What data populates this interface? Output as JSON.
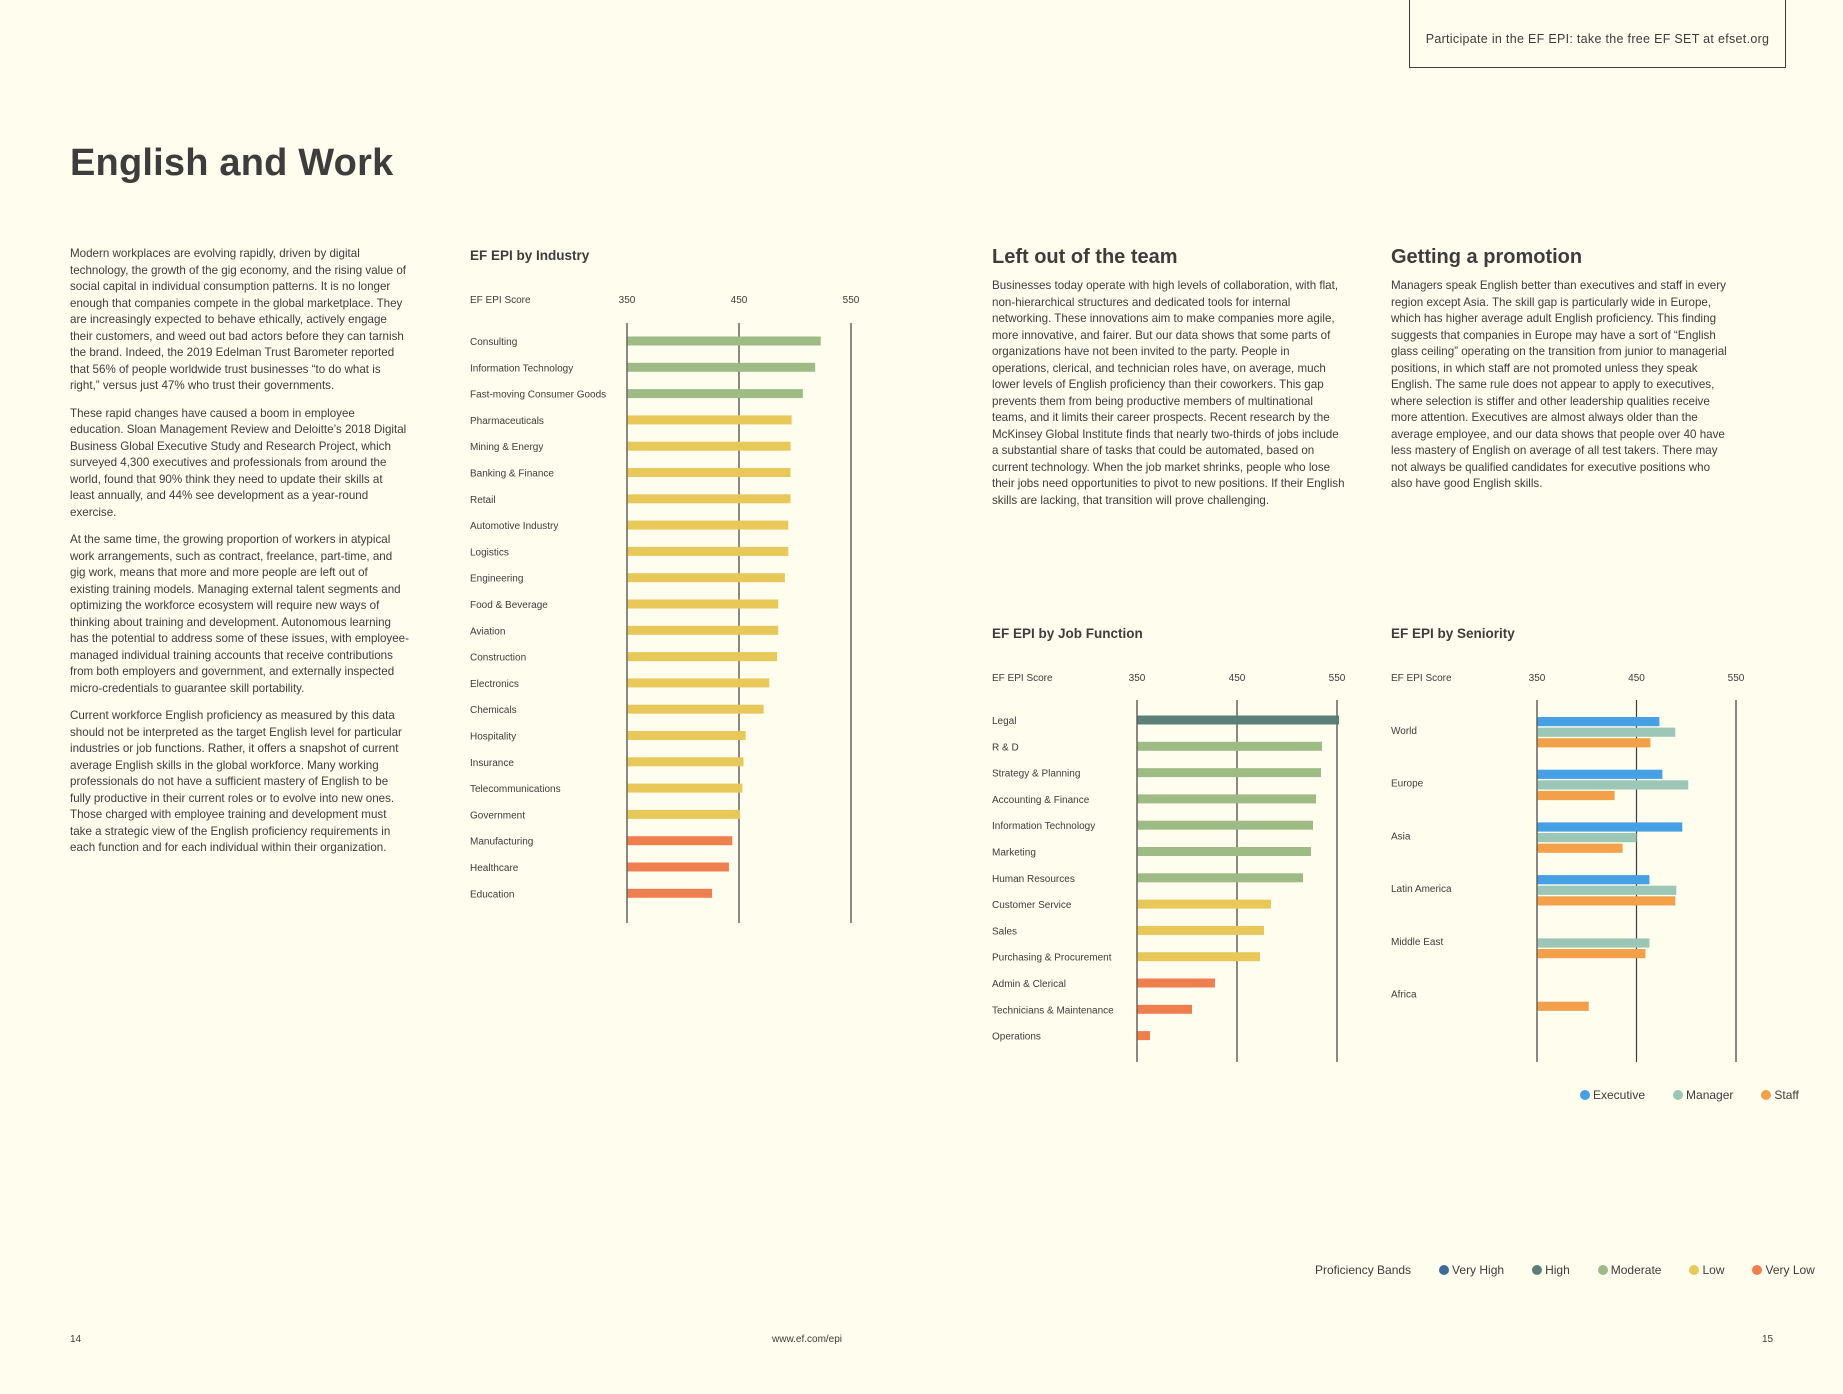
{
  "banner": "Participate in the EF EPI: take the free EF SET at efset.org",
  "title": "English and Work",
  "intro_paragraphs": [
    "Modern workplaces are evolving rapidly, driven by digital technology, the growth of the gig economy, and the rising value of social capital in individual consumption patterns. It is no longer enough that companies compete in the global marketplace. They are increasingly expected to behave ethically, actively engage their customers, and weed out bad actors before they can tarnish the brand. Indeed, the 2019 Edelman Trust Barometer reported that 56% of people worldwide trust businesses “to do what is right,” versus just 47% who trust their governments.",
    "These rapid changes have caused a boom in employee education. Sloan Management Review and Deloitte’s 2018 Digital Business Global Executive Study and Research Project, which surveyed 4,300 executives and professionals from around the world, found that 90% think they need to update their skills at least annually, and 44% see development as a year-round exercise.",
    "At the same time, the growing proportion of workers in atypical work arrangements, such as contract, freelance, part-time, and gig work, means that more and more people are left out of existing training models. Managing external talent segments and optimizing the workforce ecosystem will require new ways of thinking about training and development. Autonomous learning has the potential to address some of these issues, with employee-managed individual training accounts that receive contributions from both employers and government, and externally inspected micro-credentials to guarantee skill portability.",
    "Current workforce English proficiency as measured by this data should not be interpreted as the target English level for particular industries or job functions. Rather, it offers a snapshot of current average English skills in the global workforce. Many working professionals do not have a sufficient mastery of English to be fully productive in their current roles or to evolve into new ones. Those charged with employee training and development must take a strategic view of the English proficiency requirements in each function and for each individual within their organization."
  ],
  "team": {
    "heading": "Left out of the team",
    "text": "Businesses today operate with high levels of collaboration, with flat, non-hierarchical structures and dedicated tools for internal networking. These innovations aim to make companies more agile, more innovative, and fairer. But our data shows that some parts of organizations have not been invited to the party. People in operations, clerical, and technician roles have, on average, much lower levels of English proficiency than their coworkers. This gap prevents them from being productive members of multinational teams, and it limits their career prospects. Recent research by the McKinsey Global Institute finds that nearly two-thirds of jobs include a substantial share of tasks that could be automated, based on current technology. When the job market shrinks, people who lose their jobs need opportunities to pivot to new positions. If their English skills are lacking, that transition will prove challenging."
  },
  "promotion": {
    "heading": "Getting a promotion",
    "text": "Managers speak English better than executives and staff in every region except Asia. The skill gap is particularly wide in Europe, which has higher average adult English proficiency. This finding suggests that companies in Europe may have a sort of “English glass ceiling” operating on the transition from junior to managerial positions, in which staff are not promoted unless they speak English. The same rule does not appear to apply to executives, where selection is stiffer and other leadership qualities receive more attention. Executives are almost always older than the average employee, and our data shows that people over 40 have less mastery of English on average of all test takers. There may not always be qualified candidates for executive positions who also have good English skills."
  },
  "colors": {
    "very_high": "#3d6b9a",
    "high": "#5b7f78",
    "moderate": "#9fbb85",
    "low": "#e9c85a",
    "very_low": "#ef7f4e",
    "executive": "#46a0e6",
    "manager": "#9cc7b6",
    "staff": "#f2a14a",
    "axis": "#3d3d3d"
  },
  "chart_data": [
    {
      "type": "bar",
      "orientation": "horizontal",
      "title": "EF EPI by Industry",
      "xlabel": "EF EPI Score",
      "xlim": [
        350,
        550
      ],
      "xticks": [
        350,
        450,
        550
      ],
      "categories": [
        "Consulting",
        "Information Technology",
        "Fast-moving Consumer Goods",
        "Pharmaceuticals",
        "Mining & Energy",
        "Banking & Finance",
        "Retail",
        "Automotive Industry",
        "Logistics",
        "Engineering",
        "Food & Beverage",
        "Aviation",
        "Construction",
        "Electronics",
        "Chemicals",
        "Hospitality",
        "Insurance",
        "Telecommunications",
        "Government",
        "Manufacturing",
        "Healthcare",
        "Education"
      ],
      "values": [
        523,
        518,
        507,
        497,
        496,
        496,
        496,
        494,
        494,
        491,
        485,
        485,
        484,
        477,
        472,
        456,
        454,
        453,
        451,
        444,
        441,
        426
      ],
      "bands": [
        "moderate",
        "moderate",
        "moderate",
        "low",
        "low",
        "low",
        "low",
        "low",
        "low",
        "low",
        "low",
        "low",
        "low",
        "low",
        "low",
        "low",
        "low",
        "low",
        "low",
        "very_low",
        "very_low",
        "very_low"
      ]
    },
    {
      "type": "bar",
      "orientation": "horizontal",
      "title": "EF EPI by Job Function",
      "xlabel": "EF EPI Score",
      "xlim": [
        350,
        550
      ],
      "xticks": [
        350,
        450,
        550
      ],
      "categories": [
        "Legal",
        "R & D",
        "Strategy & Planning",
        "Accounting & Finance",
        "Information Technology",
        "Marketing",
        "Human Resources",
        "Customer Service",
        "Sales",
        "Purchasing & Procurement",
        "Admin & Clerical",
        "Technicians & Maintenance",
        "Operations"
      ],
      "values": [
        552,
        535,
        534,
        529,
        526,
        524,
        516,
        484,
        477,
        473,
        428,
        405,
        363
      ],
      "bands": [
        "high",
        "moderate",
        "moderate",
        "moderate",
        "moderate",
        "moderate",
        "moderate",
        "low",
        "low",
        "low",
        "very_low",
        "very_low",
        "very_low"
      ]
    },
    {
      "type": "bar",
      "orientation": "horizontal",
      "title": "EF EPI by Seniority",
      "xlabel": "EF EPI Score",
      "xlim": [
        350,
        550
      ],
      "xticks": [
        350,
        450,
        550
      ],
      "categories": [
        "World",
        "Europe",
        "Asia",
        "Latin America",
        "Middle East",
        "Africa"
      ],
      "series": [
        {
          "name": "Executive",
          "values": [
            473,
            476,
            496,
            463,
            null,
            null
          ]
        },
        {
          "name": "Manager",
          "values": [
            489,
            502,
            450,
            490,
            463,
            null
          ]
        },
        {
          "name": "Staff",
          "values": [
            464,
            428,
            436,
            489,
            459,
            402
          ]
        }
      ],
      "legend": [
        "Executive",
        "Manager",
        "Staff"
      ],
      "legend_position": "bottom-right"
    }
  ],
  "proficiency_legend": {
    "label": "Proficiency Bands",
    "items": [
      {
        "label": "Very High",
        "band": "very_high"
      },
      {
        "label": "High",
        "band": "high"
      },
      {
        "label": "Moderate",
        "band": "moderate"
      },
      {
        "label": "Low",
        "band": "low"
      },
      {
        "label": "Very Low",
        "band": "very_low"
      }
    ]
  },
  "footer": {
    "left_page": "14",
    "url": "www.ef.com/epi",
    "right_page": "15"
  }
}
